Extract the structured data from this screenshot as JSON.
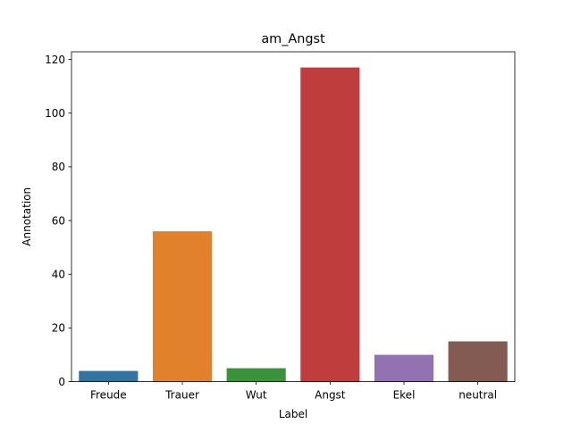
{
  "chart_data": {
    "type": "bar",
    "title": "am_Angst",
    "xlabel": "Label",
    "ylabel": "Annotation",
    "categories": [
      "Freude",
      "Trauer",
      "Wut",
      "Angst",
      "Ekel",
      "neutral"
    ],
    "values": [
      4,
      56,
      5,
      117,
      10,
      15
    ],
    "colors": [
      "#3274a1",
      "#e1812c",
      "#3a923a",
      "#c03d3e",
      "#9372b2",
      "#845b53"
    ],
    "ylim": [
      0,
      122.85
    ],
    "yticks": [
      0,
      20,
      40,
      60,
      80,
      100,
      120
    ],
    "grid": false,
    "legend": "none"
  }
}
